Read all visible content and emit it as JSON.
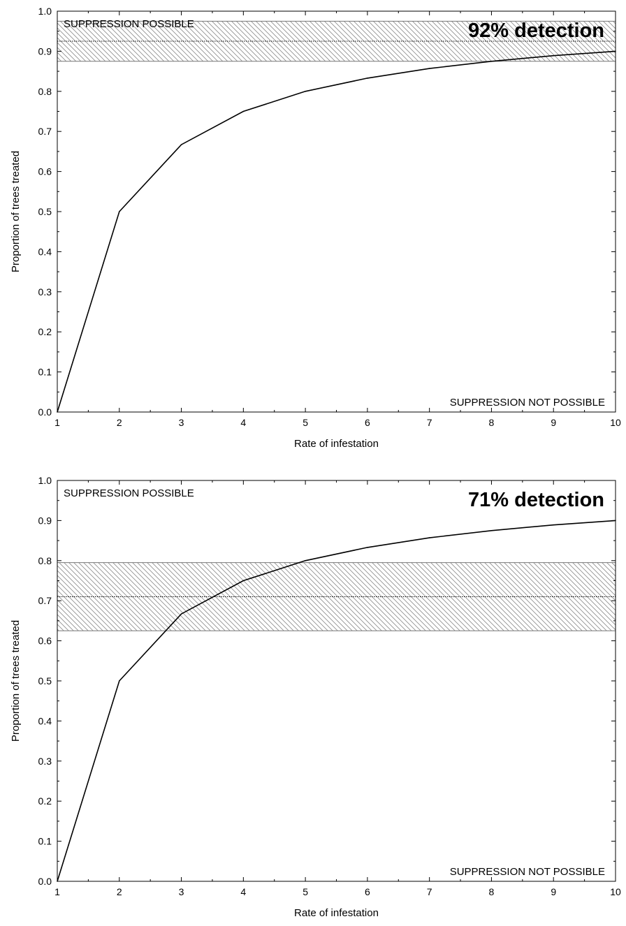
{
  "chart_data": [
    {
      "type": "line",
      "title": "92% detection",
      "xlabel": "Rate of infestation",
      "ylabel": "Proportion of trees treated",
      "xlim": [
        1,
        10
      ],
      "ylim": [
        0,
        1
      ],
      "x_ticks": [
        "1",
        "2",
        "3",
        "4",
        "5",
        "6",
        "7",
        "8",
        "9",
        "10"
      ],
      "y_ticks": [
        "0.0",
        "0.1",
        "0.2",
        "0.3",
        "0.4",
        "0.5",
        "0.6",
        "0.7",
        "0.8",
        "0.9",
        "1.0"
      ],
      "x": [
        1,
        2,
        3,
        4,
        5,
        6,
        7,
        8,
        9,
        10
      ],
      "values": [
        0.0,
        0.5,
        0.667,
        0.75,
        0.8,
        0.833,
        0.857,
        0.875,
        0.889,
        0.9
      ],
      "band": {
        "low": 0.875,
        "mid": 0.925,
        "high": 0.975
      },
      "annotations": {
        "upper": "SUPPRESSION POSSIBLE",
        "lower": "SUPPRESSION NOT POSSIBLE"
      },
      "grid": false
    },
    {
      "type": "line",
      "title": "71% detection",
      "xlabel": "Rate of infestation",
      "ylabel": "Proportion of trees treated",
      "xlim": [
        1,
        10
      ],
      "ylim": [
        0,
        1
      ],
      "x_ticks": [
        "1",
        "2",
        "3",
        "4",
        "5",
        "6",
        "7",
        "8",
        "9",
        "10"
      ],
      "y_ticks": [
        "0.0",
        "0.1",
        "0.2",
        "0.3",
        "0.4",
        "0.5",
        "0.6",
        "0.7",
        "0.8",
        "0.9",
        "1.0"
      ],
      "x": [
        1,
        2,
        3,
        4,
        5,
        6,
        7,
        8,
        9,
        10
      ],
      "values": [
        0.0,
        0.5,
        0.667,
        0.75,
        0.8,
        0.833,
        0.857,
        0.875,
        0.889,
        0.9
      ],
      "band": {
        "low": 0.625,
        "mid": 0.71,
        "high": 0.795
      },
      "annotations": {
        "upper": "SUPPRESSION POSSIBLE",
        "lower": "SUPPRESSION NOT POSSIBLE"
      },
      "grid": false
    }
  ]
}
